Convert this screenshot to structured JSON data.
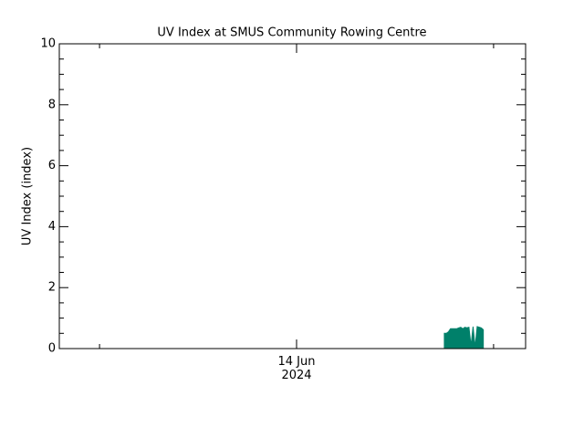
{
  "chart_data": {
    "type": "area",
    "title": "UV Index at SMUS Community Rowing Centre",
    "y_label": "UV Index (index)",
    "x": [
      18.0,
      18.25,
      18.5,
      18.75,
      19.0,
      19.25,
      19.5,
      19.75,
      20.0,
      20.25,
      20.5,
      20.75,
      21.0,
      21.25,
      21.5,
      21.75,
      22.0,
      22.25,
      22.5,
      22.75
    ],
    "values": [
      0.5,
      0.5,
      0.55,
      0.65,
      0.65,
      0.65,
      0.65,
      0.68,
      0.7,
      0.65,
      0.7,
      0.68,
      0.7,
      0.1,
      0.72,
      0.05,
      0.72,
      0.7,
      0.68,
      0.62
    ],
    "color": "#00806a",
    "xlim": [
      -28.9,
      27.9
    ],
    "xticks": [
      {
        "value": 0,
        "label": "14 Jun\n2024"
      }
    ],
    "ylim": [
      0,
      10
    ],
    "yticks": [
      0,
      2,
      4,
      6,
      8,
      10
    ]
  }
}
